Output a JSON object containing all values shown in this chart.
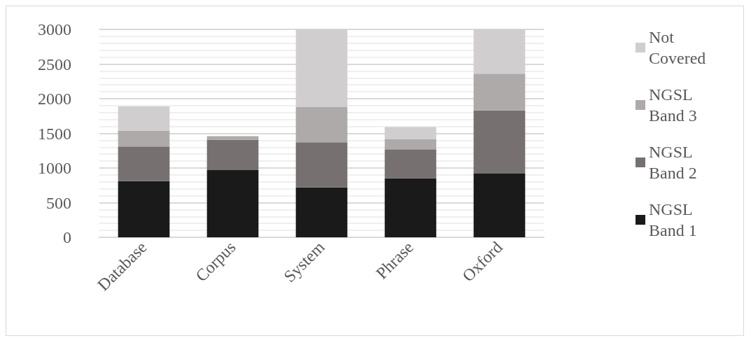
{
  "chart_data": {
    "type": "bar",
    "stacked": true,
    "categories": [
      "Database",
      "Corpus",
      "System",
      "Phrase",
      "Oxford"
    ],
    "series": [
      {
        "name": "NGSL Band 1",
        "color": "#1a1a1a",
        "values": [
          810,
          970,
          720,
          850,
          920
        ]
      },
      {
        "name": "NGSL Band 2",
        "color": "#767170",
        "values": [
          500,
          440,
          650,
          420,
          910
        ]
      },
      {
        "name": "NGSL Band 3",
        "color": "#aeaaaa",
        "values": [
          230,
          50,
          510,
          150,
          530
        ]
      },
      {
        "name": "Not Covered",
        "color": "#d0cece",
        "values": [
          350,
          0,
          1120,
          170,
          640
        ]
      }
    ],
    "ylim": [
      0,
      3000
    ],
    "yticks": [
      0,
      500,
      1000,
      1500,
      2000,
      2500,
      3000
    ],
    "grid": "y",
    "legend": "right"
  }
}
